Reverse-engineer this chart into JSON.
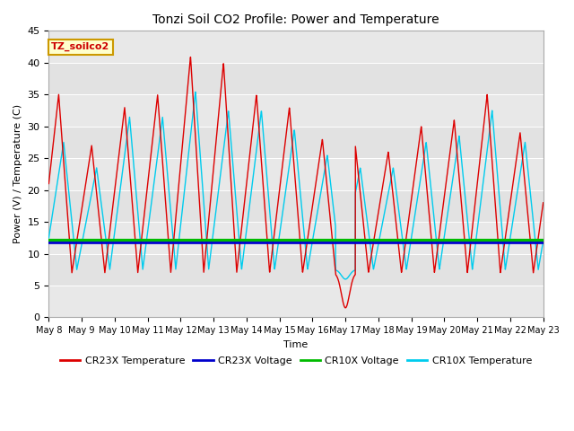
{
  "title": "Tonzi Soil CO2 Profile: Power and Temperature",
  "ylabel": "Power (V) / Temperature (C)",
  "xlabel": "Time",
  "ylim": [
    0,
    45
  ],
  "xtick_labels": [
    "May 8",
    "May 9",
    "May 10",
    "May 11",
    "May 12",
    "May 13",
    "May 14",
    "May 15",
    "May 16",
    "May 17",
    "May 18",
    "May 19",
    "May 20",
    "May 21",
    "May 22",
    "May 23"
  ],
  "ytick_values": [
    0,
    5,
    10,
    15,
    20,
    25,
    30,
    35,
    40,
    45
  ],
  "cr23x_voltage_value": 11.7,
  "cr10x_voltage_value": 12.1,
  "colors": {
    "cr23x_temp": "#DD0000",
    "cr23x_voltage": "#0000CC",
    "cr10x_voltage": "#00BB00",
    "cr10x_temp": "#00CCEE",
    "background": "#E8E8E8",
    "annotation_bg": "#FFFFCC",
    "annotation_border": "#CC9900"
  },
  "annotation_text": "TZ_soilco2",
  "legend_entries": [
    "CR23X Temperature",
    "CR23X Voltage",
    "CR10X Voltage",
    "CR10X Temperature"
  ]
}
